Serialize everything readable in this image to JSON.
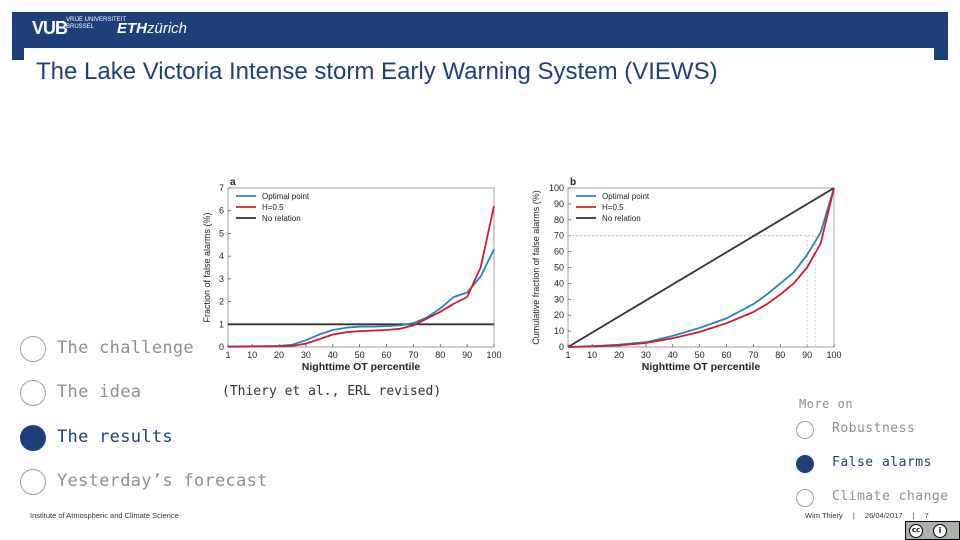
{
  "header": {
    "logo_vub": "VUB",
    "logo_vub_sub": "VRIJE UNIVERSITEIT BRUSSEL",
    "logo_eth_bold": "ETH",
    "logo_eth_light": "zürich",
    "brand_color": "#1f3f7a"
  },
  "title": "The Lake Victoria Intense storm Early Warning System (VIEWS)",
  "nav": [
    {
      "label": "The challenge",
      "active": false
    },
    {
      "label": "The idea",
      "active": false
    },
    {
      "label": "The results",
      "active": true
    },
    {
      "label": "Yesterday’s forecast",
      "active": false
    }
  ],
  "citation": "(Thiery et al., ERL revised)",
  "more_on": {
    "heading": "More on",
    "items": [
      {
        "label": "Robustness",
        "active": false
      },
      {
        "label": "False alarms",
        "active": true
      },
      {
        "label": "Climate change",
        "active": false
      }
    ]
  },
  "footer": {
    "institute": "Institute of Atmospheric and Climate Science",
    "author": "Wim Thiery",
    "separator": "|",
    "date": "26/04/2017",
    "page": "7",
    "license_icons": [
      "cc",
      "by"
    ]
  },
  "chart_data": [
    {
      "type": "line",
      "panel": "a",
      "xlabel": "Nighttime OT percentile",
      "ylabel": "Fraction of false alarms (%)",
      "xlim": [
        1,
        100
      ],
      "ylim": [
        0,
        7
      ],
      "xticks": [
        1,
        10,
        20,
        30,
        40,
        50,
        60,
        70,
        80,
        90,
        100
      ],
      "yticks": [
        0,
        1,
        2,
        3,
        4,
        5,
        6,
        7
      ],
      "legend": [
        "Optimal point",
        "H=0.5",
        "No relation"
      ],
      "series": [
        {
          "name": "Optimal point",
          "color": "#2f7fbf",
          "x": [
            1,
            10,
            20,
            25,
            30,
            35,
            40,
            45,
            50,
            55,
            60,
            65,
            70,
            75,
            80,
            85,
            90,
            95,
            100
          ],
          "y": [
            0.02,
            0.03,
            0.05,
            0.1,
            0.3,
            0.55,
            0.75,
            0.85,
            0.9,
            0.9,
            0.92,
            0.95,
            1.05,
            1.3,
            1.7,
            2.2,
            2.4,
            3.1,
            4.3
          ]
        },
        {
          "name": "H=0.5",
          "color": "#cc1f2e",
          "x": [
            1,
            10,
            20,
            25,
            30,
            35,
            40,
            45,
            50,
            55,
            60,
            65,
            70,
            75,
            80,
            85,
            90,
            95,
            100
          ],
          "y": [
            0.01,
            0.02,
            0.03,
            0.05,
            0.15,
            0.35,
            0.55,
            0.65,
            0.7,
            0.72,
            0.75,
            0.8,
            0.95,
            1.25,
            1.55,
            1.9,
            2.2,
            3.5,
            6.2
          ]
        },
        {
          "name": "No relation",
          "color": "#333333",
          "x": [
            1,
            100
          ],
          "y": [
            1,
            1
          ]
        }
      ]
    },
    {
      "type": "line",
      "panel": "b",
      "xlabel": "Nighttime OT percentile",
      "ylabel": "Cumulative fraction of false alarms (%)",
      "xlim": [
        1,
        100
      ],
      "ylim": [
        0,
        100
      ],
      "xticks": [
        1,
        10,
        20,
        30,
        40,
        50,
        60,
        70,
        80,
        90,
        100
      ],
      "yticks": [
        0,
        10,
        20,
        30,
        40,
        50,
        60,
        70,
        80,
        90,
        100
      ],
      "legend": [
        "Optimal point",
        "H=0.5",
        "No relation"
      ],
      "reference_levels": [
        {
          "x": 90,
          "y": 70
        },
        {
          "x": 93,
          "y": 70
        }
      ],
      "series": [
        {
          "name": "Optimal point",
          "color": "#2f7fbf",
          "x": [
            1,
            10,
            20,
            30,
            40,
            50,
            60,
            70,
            75,
            80,
            85,
            90,
            95,
            100
          ],
          "y": [
            0,
            0.5,
            1.5,
            3,
            7,
            12,
            18,
            27,
            33,
            40,
            47,
            58,
            72,
            100
          ]
        },
        {
          "name": "H=0.5",
          "color": "#cc1f2e",
          "x": [
            1,
            10,
            20,
            30,
            40,
            50,
            60,
            70,
            75,
            80,
            85,
            90,
            95,
            100
          ],
          "y": [
            0,
            0.3,
            1,
            2.5,
            5.5,
            9.5,
            15,
            22,
            27,
            33,
            40,
            50,
            65,
            100
          ]
        },
        {
          "name": "No relation",
          "color": "#333333",
          "x": [
            1,
            100
          ],
          "y": [
            0,
            100
          ]
        }
      ]
    }
  ]
}
